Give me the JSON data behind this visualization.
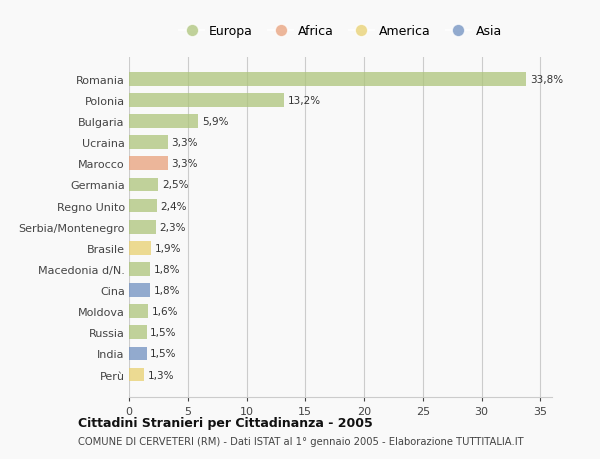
{
  "countries": [
    "Romania",
    "Polonia",
    "Bulgaria",
    "Ucraina",
    "Marocco",
    "Germania",
    "Regno Unito",
    "Serbia/Montenegro",
    "Brasile",
    "Macedonia d/N.",
    "Cina",
    "Moldova",
    "Russia",
    "India",
    "Perù"
  ],
  "values": [
    33.8,
    13.2,
    5.9,
    3.3,
    3.3,
    2.5,
    2.4,
    2.3,
    1.9,
    1.8,
    1.8,
    1.6,
    1.5,
    1.5,
    1.3
  ],
  "labels": [
    "33,8%",
    "13,2%",
    "5,9%",
    "3,3%",
    "3,3%",
    "2,5%",
    "2,4%",
    "2,3%",
    "1,9%",
    "1,8%",
    "1,8%",
    "1,6%",
    "1,5%",
    "1,5%",
    "1,3%"
  ],
  "continents": [
    "Europa",
    "Europa",
    "Europa",
    "Europa",
    "Africa",
    "Europa",
    "Europa",
    "Europa",
    "America",
    "Europa",
    "Asia",
    "Europa",
    "Europa",
    "Asia",
    "America"
  ],
  "colors": {
    "Europa": "#adc47a",
    "Africa": "#e8a07a",
    "America": "#e8d070",
    "Asia": "#7090c0"
  },
  "xlim": [
    0,
    36
  ],
  "xticks": [
    0,
    5,
    10,
    15,
    20,
    25,
    30,
    35
  ],
  "title": "Cittadini Stranieri per Cittadinanza - 2005",
  "subtitle": "COMUNE DI CERVETERI (RM) - Dati ISTAT al 1° gennaio 2005 - Elaborazione TUTTITALIA.IT",
  "background_color": "#f9f9f9",
  "grid_color": "#cccccc",
  "bar_height": 0.65,
  "label_fontsize": 7.5,
  "ytick_fontsize": 8,
  "xtick_fontsize": 8,
  "legend_entries": [
    "Europa",
    "Africa",
    "America",
    "Asia"
  ]
}
